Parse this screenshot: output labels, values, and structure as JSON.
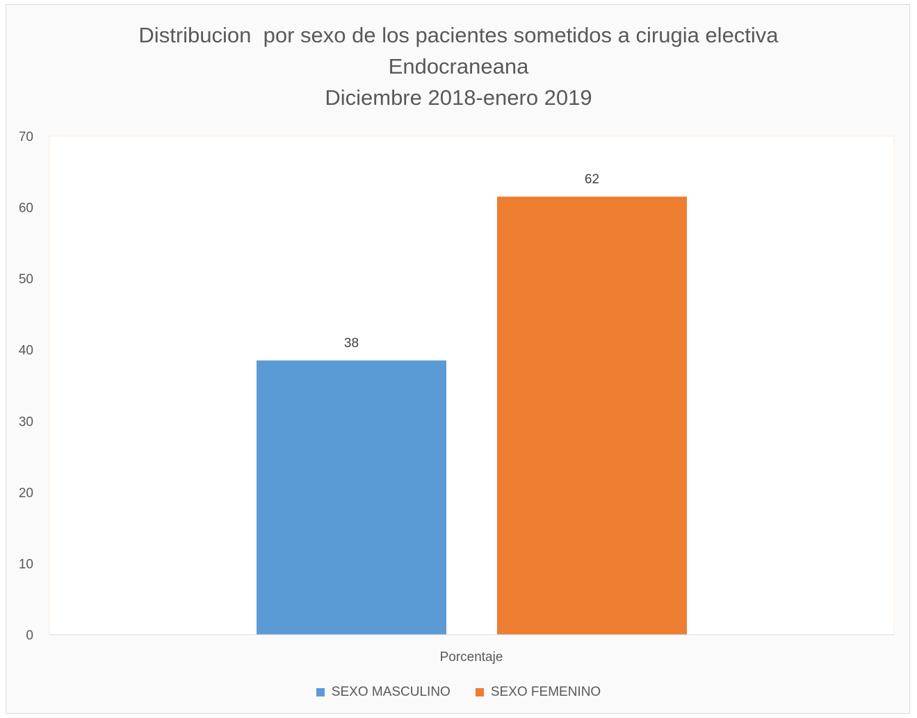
{
  "chart_data": {
    "type": "bar",
    "title_lines": [
      "Distribucion  por sexo de los pacientes sometidos a cirugia electiva",
      "Endocraneana",
      "Diciembre 2018-enero 2019"
    ],
    "categories": [
      "Porcentaje"
    ],
    "series": [
      {
        "name": "SEXO MASCULINO",
        "values": [
          38.5
        ],
        "label": "38",
        "color": "#5b9bd5"
      },
      {
        "name": "SEXO FEMENINO",
        "values": [
          61.5
        ],
        "label": "62",
        "color": "#ed7d31"
      }
    ],
    "ylim": [
      0,
      70
    ],
    "yticks": [
      "0",
      "10",
      "20",
      "30",
      "40",
      "50",
      "60",
      "70"
    ],
    "grid": false,
    "legend_position": "bottom"
  }
}
